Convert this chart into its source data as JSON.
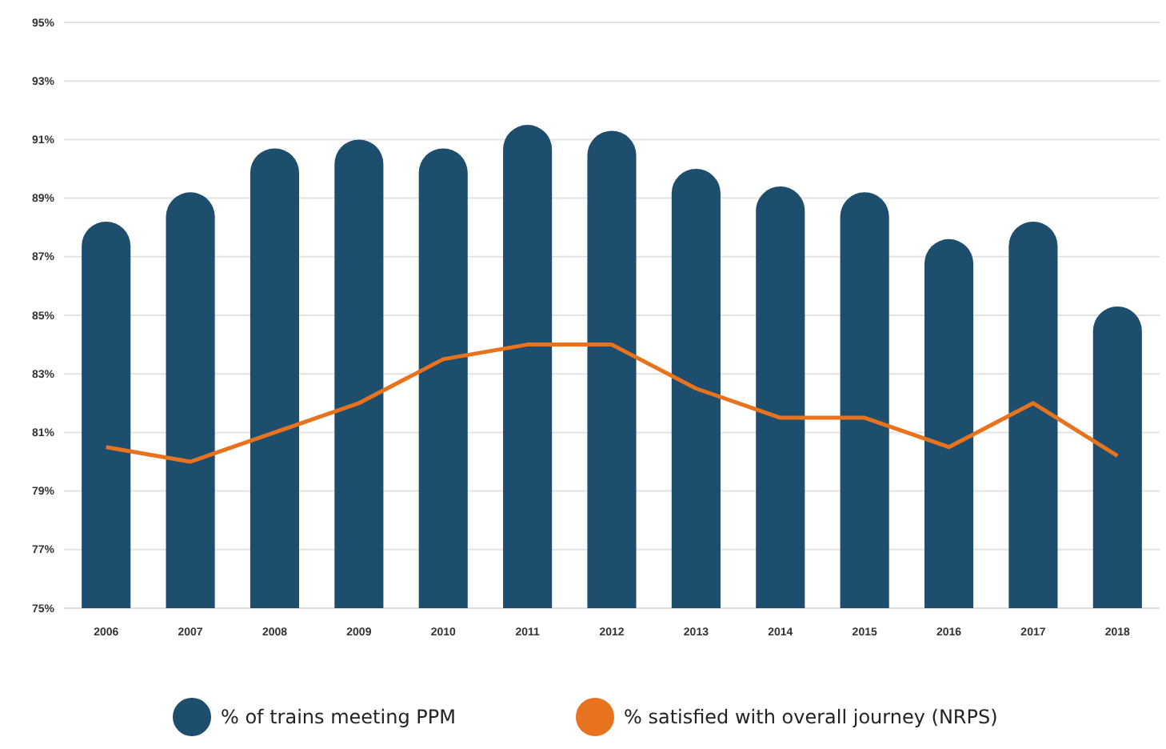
{
  "chart_data": {
    "type": "bar",
    "categories": [
      "2006",
      "2007",
      "2008",
      "2009",
      "2010",
      "2011",
      "2012",
      "2013",
      "2014",
      "2015",
      "2016",
      "2017",
      "2018"
    ],
    "series": [
      {
        "name": "% of trains meeting PPM",
        "color": "#1d4e6e",
        "values": [
          88.2,
          89.2,
          90.7,
          91.0,
          90.7,
          91.5,
          91.3,
          90.0,
          89.4,
          89.2,
          87.6,
          88.2,
          85.3
        ]
      },
      {
        "name": "% satisfied with overall journey (NRPS)",
        "type": "line",
        "color": "#e8731e",
        "values": [
          80.5,
          80.0,
          81.0,
          82.0,
          83.5,
          84.0,
          84.0,
          82.5,
          81.5,
          81.5,
          80.5,
          82.0,
          80.2
        ]
      }
    ],
    "ylim": [
      75,
      95
    ],
    "yticks": [
      {
        "value": 75,
        "label": "75%"
      },
      {
        "value": 77,
        "label": "77%"
      },
      {
        "value": 79,
        "label": "79%"
      },
      {
        "value": 81,
        "label": "81%"
      },
      {
        "value": 83,
        "label": "83%"
      },
      {
        "value": 85,
        "label": "85%"
      },
      {
        "value": 87,
        "label": "87%"
      },
      {
        "value": 89,
        "label": "89%"
      },
      {
        "value": 91,
        "label": "91%"
      },
      {
        "value": 93,
        "label": "93%"
      },
      {
        "value": 95,
        "label": "95%"
      }
    ],
    "grid": "y",
    "legend": "bottom",
    "marker": "none"
  }
}
